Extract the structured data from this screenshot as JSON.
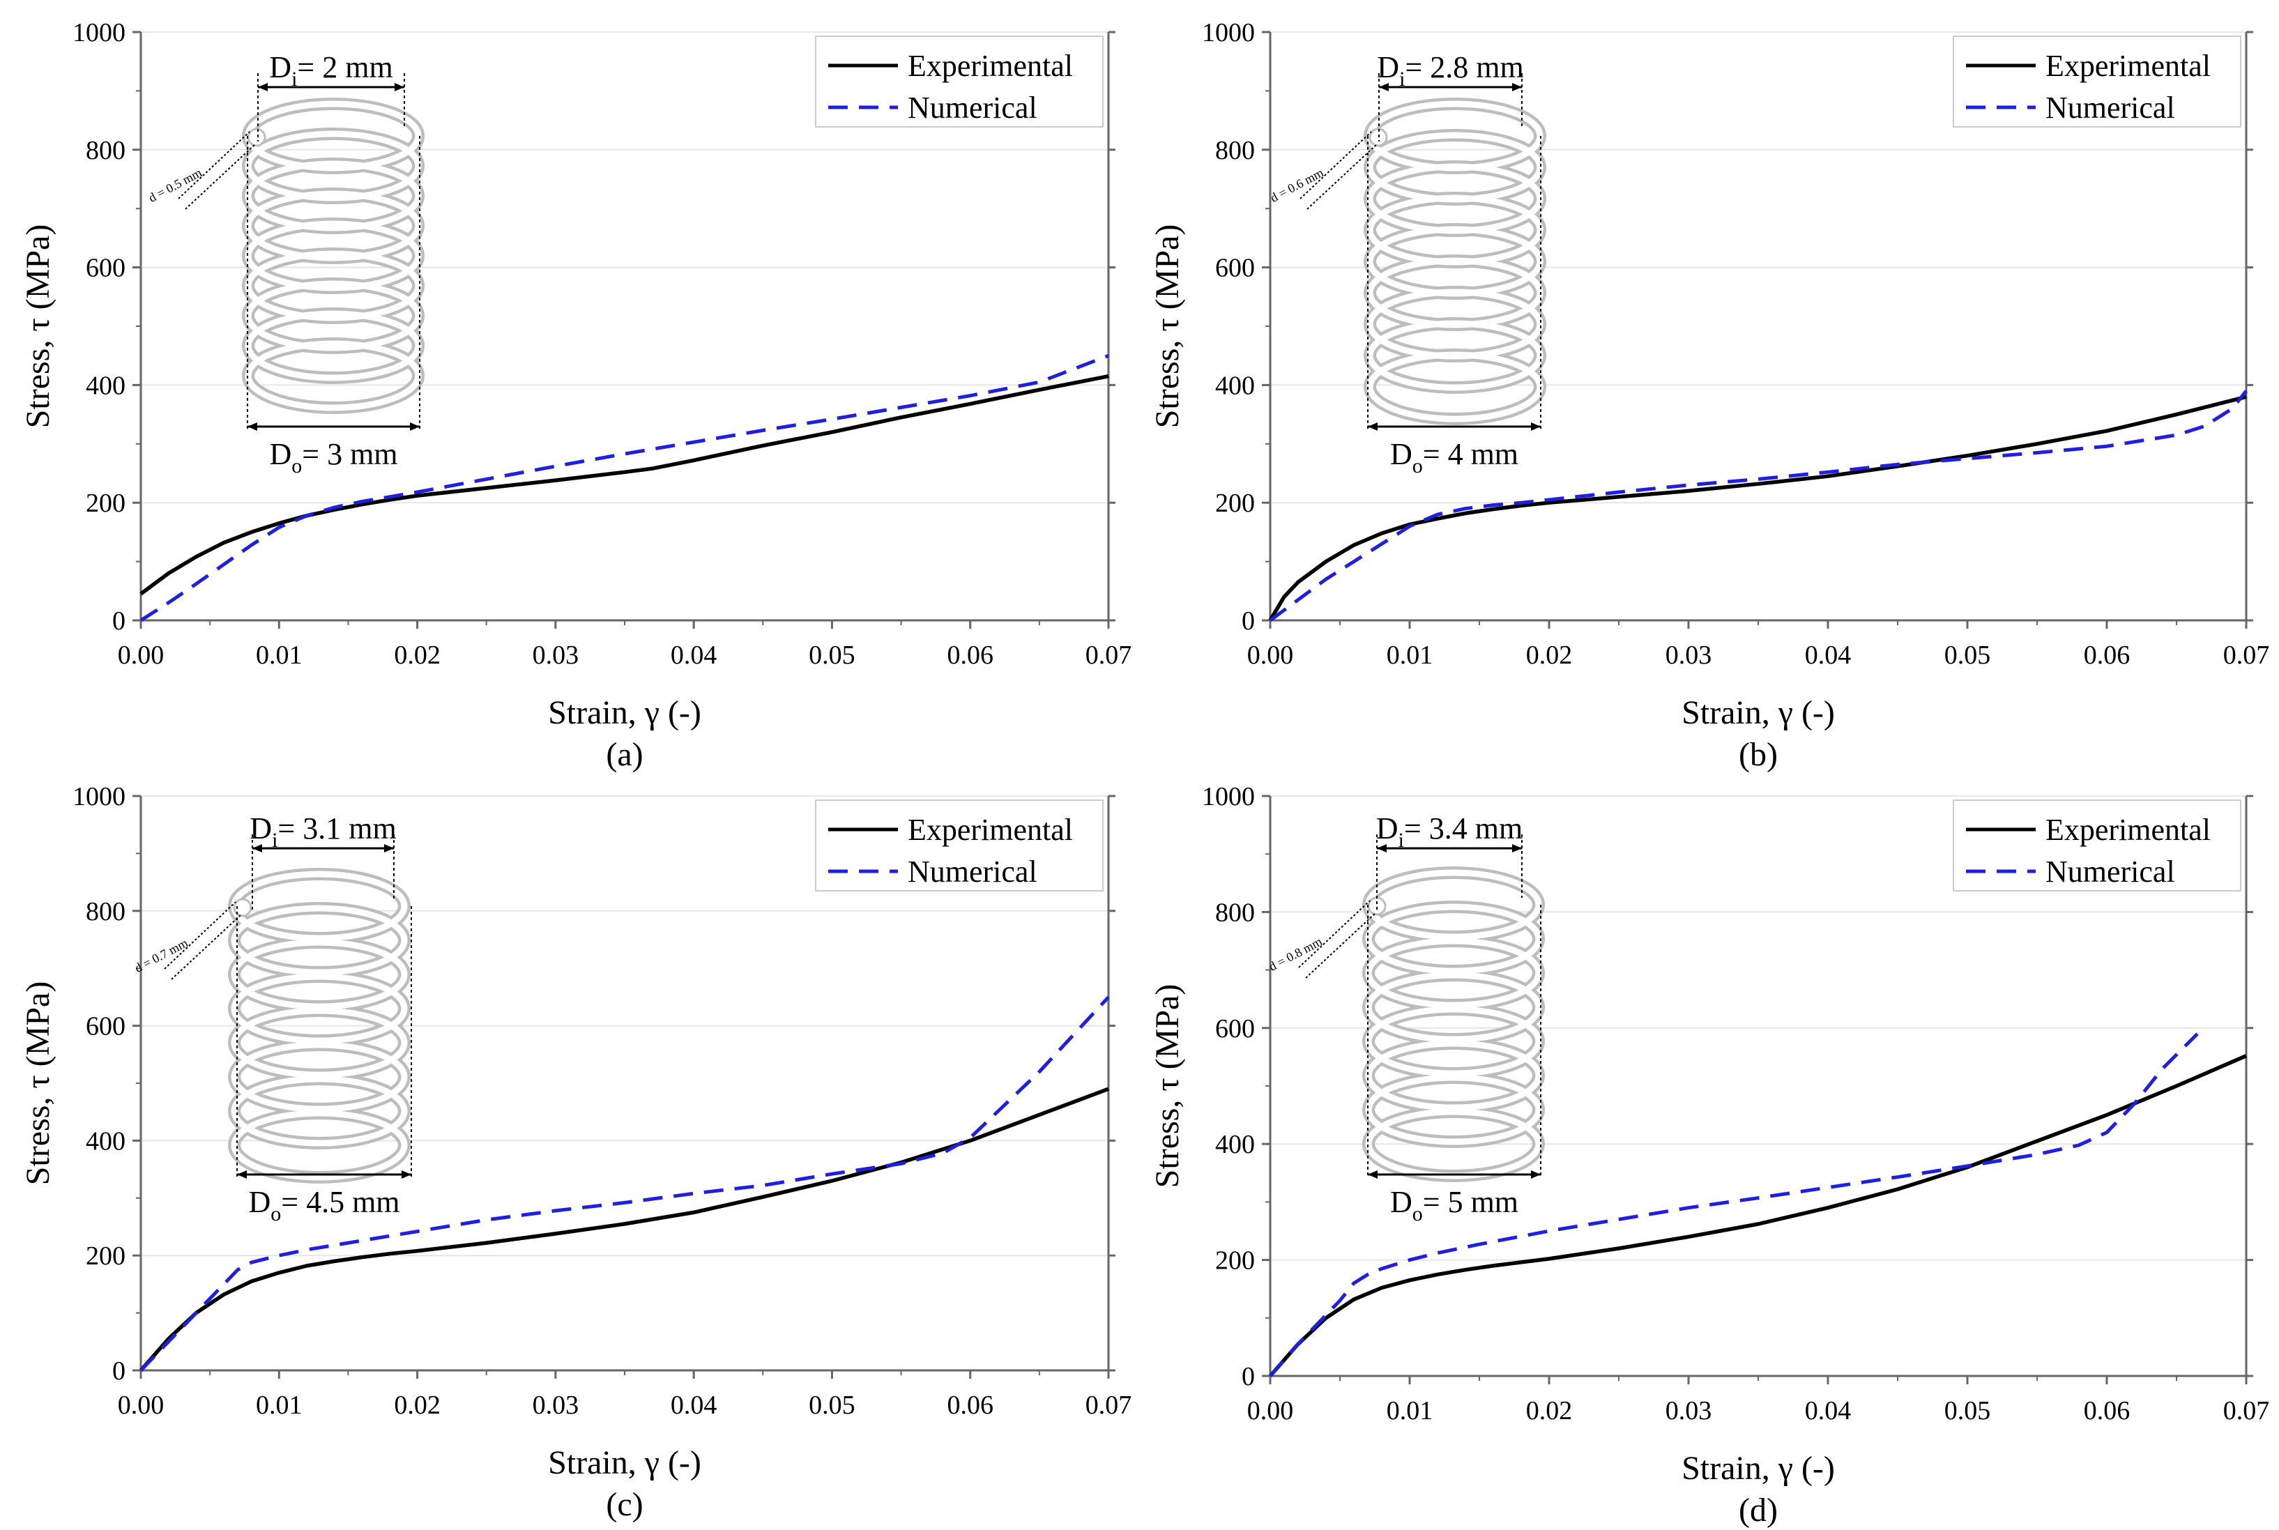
{
  "colors": {
    "experimental": "#000000",
    "numerical": "#1f1fe0",
    "spring": "#bdbdbd",
    "axis": "#666666",
    "grid": "#e6e6e6"
  },
  "chart_data": [
    {
      "type": "line",
      "panel_label": "(a)",
      "xlabel": "Strain, γ (-)",
      "ylabel": "Stress, τ (MPa)",
      "xlim": [
        0,
        0.07
      ],
      "ylim": [
        0,
        1000
      ],
      "xticks": [
        "0.00",
        "0.01",
        "0.02",
        "0.03",
        "0.04",
        "0.05",
        "0.06",
        "0.07"
      ],
      "yticks": [
        "0",
        "200",
        "400",
        "600",
        "800",
        "1000"
      ],
      "legend": [
        "Experimental",
        "Numerical"
      ],
      "legend_position": "top-right",
      "inset": {
        "Di_sym": "D",
        "Di_sub": "i",
        "Di_value": "= 2 mm",
        "Do_sym": "D",
        "Do_sub": "o",
        "Do_value": "= 3 mm",
        "d_label": "d = 0.5 mm"
      },
      "series": [
        {
          "name": "Experimental",
          "style": "solid",
          "x": [
            0,
            0.002,
            0.004,
            0.006,
            0.008,
            0.01,
            0.012,
            0.014,
            0.016,
            0.018,
            0.02,
            0.025,
            0.03,
            0.035,
            0.037,
            0.04,
            0.045,
            0.05,
            0.055,
            0.06,
            0.065,
            0.07
          ],
          "y": [
            45,
            80,
            108,
            132,
            150,
            165,
            178,
            188,
            197,
            205,
            212,
            225,
            238,
            252,
            258,
            272,
            297,
            320,
            345,
            368,
            392,
            415
          ]
        },
        {
          "name": "Numerical",
          "style": "dashed",
          "x": [
            0,
            0.002,
            0.004,
            0.006,
            0.008,
            0.01,
            0.012,
            0.014,
            0.016,
            0.018,
            0.02,
            0.025,
            0.03,
            0.035,
            0.04,
            0.045,
            0.05,
            0.055,
            0.06,
            0.065,
            0.07
          ],
          "y": [
            0,
            30,
            62,
            95,
            128,
            158,
            178,
            192,
            202,
            210,
            218,
            240,
            262,
            283,
            303,
            323,
            342,
            362,
            382,
            405,
            450
          ]
        }
      ]
    },
    {
      "type": "line",
      "panel_label": "(b)",
      "xlabel": "Strain, γ (-)",
      "ylabel": "Stress, τ (MPa)",
      "xlim": [
        0,
        0.07
      ],
      "ylim": [
        0,
        1000
      ],
      "xticks": [
        "0.00",
        "0.01",
        "0.02",
        "0.03",
        "0.04",
        "0.05",
        "0.06",
        "0.07"
      ],
      "yticks": [
        "0",
        "200",
        "400",
        "600",
        "800",
        "1000"
      ],
      "legend": [
        "Experimental",
        "Numerical"
      ],
      "legend_position": "top-right",
      "inset": {
        "Di_sym": "D",
        "Di_sub": "i",
        "Di_value": "= 2.8 mm",
        "Do_sym": "D",
        "Do_sub": "o",
        "Do_value": "= 4 mm",
        "d_label": "d = 0.6 mm"
      },
      "series": [
        {
          "name": "Experimental",
          "style": "solid",
          "x": [
            0,
            0.001,
            0.002,
            0.004,
            0.006,
            0.008,
            0.01,
            0.012,
            0.014,
            0.016,
            0.018,
            0.02,
            0.025,
            0.03,
            0.035,
            0.04,
            0.045,
            0.05,
            0.055,
            0.06,
            0.065,
            0.07
          ],
          "y": [
            0,
            40,
            65,
            100,
            128,
            148,
            163,
            173,
            182,
            189,
            195,
            200,
            210,
            220,
            232,
            245,
            262,
            280,
            300,
            322,
            350,
            380
          ]
        },
        {
          "name": "Numerical",
          "style": "dashed",
          "x": [
            0,
            0.002,
            0.004,
            0.006,
            0.008,
            0.01,
            0.012,
            0.014,
            0.016,
            0.018,
            0.02,
            0.025,
            0.03,
            0.035,
            0.04,
            0.045,
            0.05,
            0.055,
            0.06,
            0.065,
            0.067,
            0.069,
            0.07
          ],
          "y": [
            0,
            35,
            70,
            100,
            130,
            160,
            180,
            190,
            196,
            200,
            205,
            218,
            230,
            240,
            252,
            265,
            275,
            285,
            296,
            315,
            330,
            360,
            390
          ]
        }
      ]
    },
    {
      "type": "line",
      "panel_label": "(c)",
      "xlabel": "Strain, γ (-)",
      "ylabel": "Stress, τ (MPa)",
      "xlim": [
        0,
        0.07
      ],
      "ylim": [
        0,
        1000
      ],
      "xticks": [
        "0.00",
        "0.01",
        "0.02",
        "0.03",
        "0.04",
        "0.05",
        "0.06",
        "0.07"
      ],
      "yticks": [
        "0",
        "200",
        "400",
        "600",
        "800",
        "1000"
      ],
      "legend": [
        "Experimental",
        "Numerical"
      ],
      "legend_position": "top-right",
      "inset": {
        "Di_sym": "D",
        "Di_sub": "i",
        "Di_value": "= 3.1 mm",
        "Do_sym": "D",
        "Do_sub": "o",
        "Do_value": "= 4.5 mm",
        "d_label": "d = 0.7 mm"
      },
      "series": [
        {
          "name": "Experimental",
          "style": "solid",
          "x": [
            0,
            0.002,
            0.004,
            0.006,
            0.008,
            0.01,
            0.012,
            0.014,
            0.016,
            0.018,
            0.02,
            0.025,
            0.03,
            0.035,
            0.04,
            0.045,
            0.05,
            0.055,
            0.06,
            0.065,
            0.07
          ],
          "y": [
            0,
            55,
            100,
            132,
            155,
            170,
            182,
            190,
            197,
            203,
            208,
            222,
            238,
            255,
            275,
            302,
            330,
            362,
            400,
            445,
            490
          ]
        },
        {
          "name": "Numerical",
          "style": "dashed",
          "x": [
            0,
            0.002,
            0.004,
            0.006,
            0.007,
            0.008,
            0.01,
            0.012,
            0.015,
            0.02,
            0.025,
            0.03,
            0.035,
            0.04,
            0.045,
            0.05,
            0.055,
            0.058,
            0.06,
            0.065,
            0.07
          ],
          "y": [
            0,
            50,
            100,
            150,
            175,
            188,
            200,
            210,
            222,
            242,
            262,
            278,
            292,
            308,
            322,
            342,
            360,
            378,
            405,
            520,
            650
          ]
        }
      ]
    },
    {
      "type": "line",
      "panel_label": "(d)",
      "xlabel": "Strain, γ (-)",
      "ylabel": "Stress, τ (MPa)",
      "xlim": [
        0,
        0.07
      ],
      "ylim": [
        0,
        1000
      ],
      "xticks": [
        "0.00",
        "0.01",
        "0.02",
        "0.03",
        "0.04",
        "0.05",
        "0.06",
        "0.07"
      ],
      "yticks": [
        "0",
        "200",
        "400",
        "600",
        "800",
        "1000"
      ],
      "legend": [
        "Experimental",
        "Numerical"
      ],
      "legend_position": "top-right",
      "inset": {
        "Di_sym": "D",
        "Di_sub": "i",
        "Di_value": "= 3.4 mm",
        "Do_sym": "D",
        "Do_sub": "o",
        "Do_value": "= 5 mm",
        "d_label": "d = 0.8 mm"
      },
      "series": [
        {
          "name": "Experimental",
          "style": "solid",
          "x": [
            0,
            0.002,
            0.004,
            0.006,
            0.008,
            0.01,
            0.012,
            0.014,
            0.016,
            0.018,
            0.02,
            0.025,
            0.03,
            0.035,
            0.04,
            0.045,
            0.05,
            0.055,
            0.06,
            0.065,
            0.07
          ],
          "y": [
            0,
            55,
            100,
            132,
            152,
            165,
            175,
            183,
            190,
            196,
            202,
            220,
            240,
            262,
            290,
            322,
            360,
            405,
            450,
            500,
            552
          ]
        },
        {
          "name": "Numerical",
          "style": "dashed",
          "x": [
            0,
            0.002,
            0.004,
            0.005,
            0.006,
            0.007,
            0.008,
            0.01,
            0.012,
            0.015,
            0.02,
            0.025,
            0.03,
            0.035,
            0.04,
            0.045,
            0.05,
            0.055,
            0.058,
            0.06,
            0.062,
            0.064,
            0.0665
          ],
          "y": [
            0,
            55,
            105,
            130,
            160,
            175,
            185,
            200,
            212,
            227,
            250,
            270,
            290,
            307,
            325,
            343,
            362,
            382,
            398,
            420,
            470,
            530,
            590
          ]
        }
      ]
    }
  ]
}
